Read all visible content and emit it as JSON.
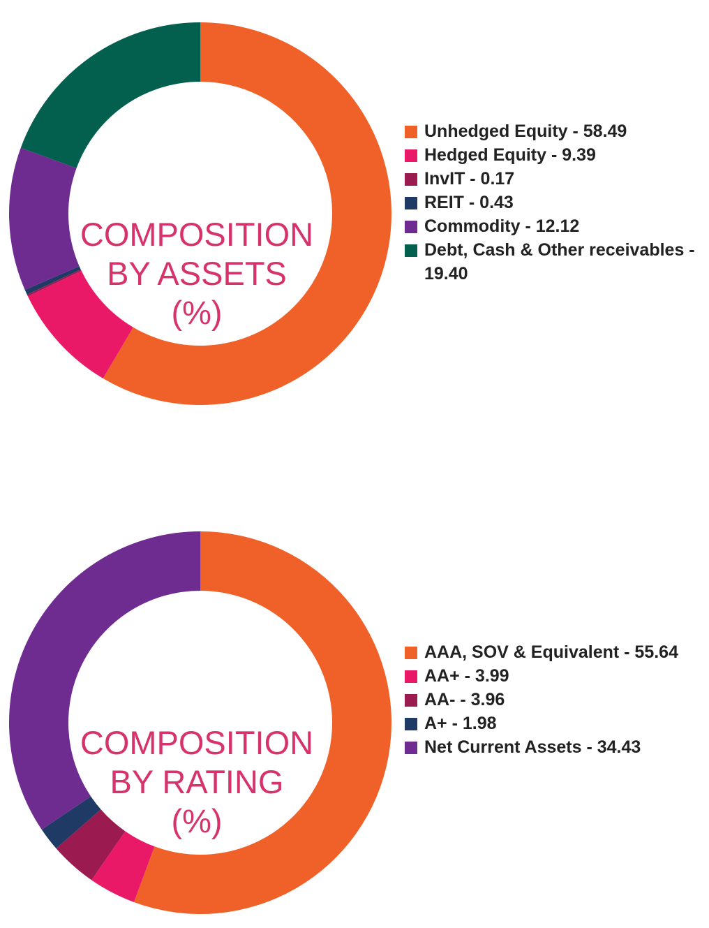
{
  "chart_data": [
    {
      "type": "pie",
      "donut": true,
      "center_title": [
        "COMPOSITION",
        "BY ASSETS",
        "(%)"
      ],
      "slices": [
        {
          "label": "Unhedged Equity - 58.49",
          "value": 58.49,
          "color": "#f0612a"
        },
        {
          "label": "Hedged Equity - 9.39",
          "value": 9.39,
          "color": "#ea1967"
        },
        {
          "label": "InvIT - 0.17",
          "value": 0.17,
          "color": "#9b1b51"
        },
        {
          "label": "REIT - 0.43",
          "value": 0.43,
          "color": "#1f3a64"
        },
        {
          "label": "Commodity - 12.12",
          "value": 12.12,
          "color": "#6f2c90"
        },
        {
          "label": "Debt, Cash & Other receivables - 19.40",
          "value": 19.4,
          "color": "#035f4e"
        }
      ],
      "legend_position": "right"
    },
    {
      "type": "pie",
      "donut": true,
      "center_title": [
        "COMPOSITION",
        "BY RATING",
        "(%)"
      ],
      "slices": [
        {
          "label": "AAA, SOV & Equivalent - 55.64",
          "value": 55.64,
          "color": "#f0612a"
        },
        {
          "label": "AA+ - 3.99",
          "value": 3.99,
          "color": "#ea1967"
        },
        {
          "label": "AA- - 3.96",
          "value": 3.96,
          "color": "#9b1b51"
        },
        {
          "label": "A+ - 1.98",
          "value": 1.98,
          "color": "#1f3a64"
        },
        {
          "label": "Net Current Assets - 34.43",
          "value": 34.43,
          "color": "#6f2c90"
        }
      ],
      "legend_position": "right"
    }
  ]
}
